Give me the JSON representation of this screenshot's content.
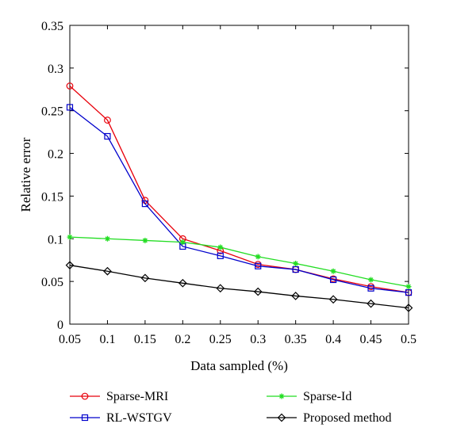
{
  "chart_data": {
    "type": "line",
    "title": "",
    "xlabel": "Data sampled (%)",
    "ylabel": "Relative error",
    "x": [
      0.05,
      0.1,
      0.15,
      0.2,
      0.25,
      0.3,
      0.35,
      0.4,
      0.45,
      0.5
    ],
    "x_tick_labels": [
      "0.05",
      "0.1",
      "0.15",
      "0.2",
      "0.25",
      "0.3",
      "0.35",
      "0.4",
      "0.45",
      "0.5"
    ],
    "y_ticks": [
      0,
      0.05,
      0.1,
      0.15,
      0.2,
      0.25,
      0.3,
      0.35
    ],
    "y_tick_labels": [
      "0",
      "0.05",
      "0.1",
      "0.15",
      "0.2",
      "0.25",
      "0.3",
      "0.35"
    ],
    "xlim": [
      0.05,
      0.5
    ],
    "ylim": [
      0,
      0.35
    ],
    "grid": false,
    "legend_position": "bottom-outside",
    "series": [
      {
        "name": "Sparse-MRI",
        "color": "#e8000b",
        "marker": "circle",
        "values": [
          0.279,
          0.239,
          0.145,
          0.1,
          0.086,
          0.07,
          0.064,
          0.053,
          0.044,
          0.037
        ]
      },
      {
        "name": "RL-WSTGV",
        "color": "#0000cc",
        "marker": "square",
        "values": [
          0.254,
          0.22,
          0.141,
          0.091,
          0.08,
          0.068,
          0.064,
          0.052,
          0.042,
          0.037
        ]
      },
      {
        "name": "Sparse-Id",
        "color": "#22dd22",
        "marker": "star",
        "values": [
          0.102,
          0.1,
          0.098,
          0.096,
          0.09,
          0.079,
          0.071,
          0.062,
          0.052,
          0.044
        ]
      },
      {
        "name": "Proposed method",
        "color": "#000000",
        "marker": "diamond",
        "values": [
          0.069,
          0.062,
          0.054,
          0.048,
          0.042,
          0.038,
          0.033,
          0.029,
          0.024,
          0.019
        ]
      }
    ]
  }
}
